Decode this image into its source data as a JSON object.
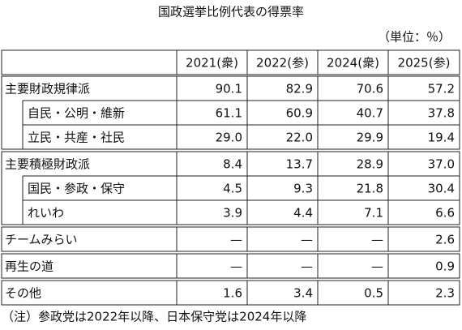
{
  "title": "国政選挙比例代表の得票率",
  "unit": "（単位：％）",
  "columns": [
    "2021(衆)",
    "2022(参)",
    "2024(衆)",
    "2025(参)"
  ],
  "groups": [
    {
      "label": "主要財政規律派",
      "values": [
        "90.1",
        "82.9",
        "70.6",
        "57.2"
      ],
      "children": [
        {
          "label": "自民・公明・維新",
          "values": [
            "61.1",
            "60.9",
            "40.7",
            "37.8"
          ]
        },
        {
          "label": "立民・共産・社民",
          "values": [
            "29.0",
            "22.0",
            "29.9",
            "19.4"
          ]
        }
      ]
    },
    {
      "label": "主要積極財政派",
      "values": [
        "8.4",
        "13.7",
        "28.9",
        "37.0"
      ],
      "children": [
        {
          "label": "国民・参政・保守",
          "values": [
            "4.5",
            "9.3",
            "21.8",
            "30.4"
          ]
        },
        {
          "label": "れいわ",
          "values": [
            "3.9",
            "4.4",
            "7.1",
            "6.6"
          ]
        }
      ]
    },
    {
      "label": "チームみらい",
      "values": [
        "—",
        "—",
        "—",
        "2.6"
      ]
    },
    {
      "label": "再生の道",
      "values": [
        "—",
        "—",
        "—",
        "0.9"
      ]
    },
    {
      "label": "その他",
      "values": [
        "1.6",
        "3.4",
        "0.5",
        "2.3"
      ]
    }
  ],
  "note": "（注）参政党は2022年以降、日本保守党は2024年以降"
}
